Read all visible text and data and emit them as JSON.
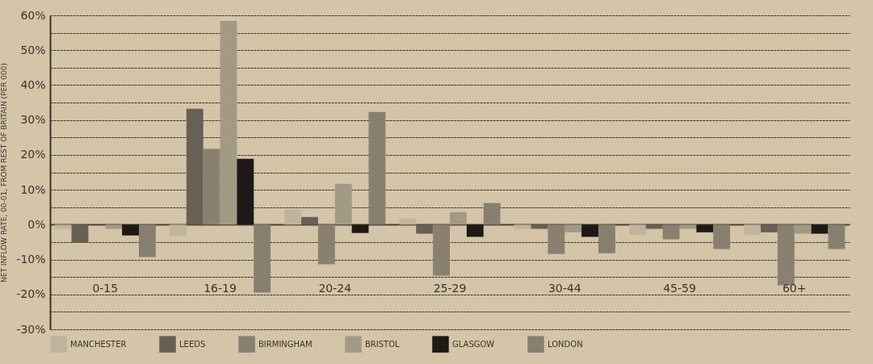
{
  "chart_data": {
    "type": "bar",
    "ylabel": "NET INFLOW RATE, 00-01, FROM REST OF BRITAIN (PER 000)",
    "categories": [
      "0-15",
      "16-19",
      "20-24",
      "25-29",
      "30-44",
      "45-59",
      "60+"
    ],
    "series": [
      {
        "name": "MANCHESTER",
        "color": "#c0b49c",
        "values": [
          -1.2,
          -3.3,
          4.3,
          1.8,
          -1.2,
          -2.9,
          -2.9
        ]
      },
      {
        "name": "LEEDS",
        "color": "#686054",
        "values": [
          -5.2,
          33.2,
          2.2,
          -2.6,
          -1.2,
          -1.2,
          -2.2
        ]
      },
      {
        "name": "BIRMINGHAM",
        "color": "#8a8070",
        "values": [
          null,
          21.7,
          -11.4,
          -14.6,
          -8.4,
          -4.2,
          -17.4
        ]
      },
      {
        "name": "BRISTOL",
        "color": "#a39a85",
        "values": [
          -1.2,
          58.4,
          11.7,
          3.6,
          -2.2,
          -1.2,
          -2.6
        ]
      },
      {
        "name": "GLASGOW",
        "color": "#1e1917",
        "values": [
          -3.1,
          18.9,
          -2.4,
          -3.5,
          -3.5,
          -2.2,
          -2.6
        ]
      },
      {
        "name": "LONDON",
        "color": "#878070",
        "values": [
          -9.3,
          -19.5,
          32.3,
          6.2,
          -8.2,
          -7.0,
          -7.0
        ]
      }
    ],
    "ylim": [
      -30,
      60
    ],
    "yticks": [
      {
        "value": -30,
        "label": "-30%"
      },
      {
        "value": -25,
        "label": null
      },
      {
        "value": -20,
        "label": "-20%"
      },
      {
        "value": -15,
        "label": null
      },
      {
        "value": -10,
        "label": "-10%"
      },
      {
        "value": -5,
        "label": null
      },
      {
        "value": 0,
        "label": "0%"
      },
      {
        "value": 5,
        "label": null
      },
      {
        "value": 10,
        "label": "10%"
      },
      {
        "value": 15,
        "label": null
      },
      {
        "value": 20,
        "label": "20%"
      },
      {
        "value": 25,
        "label": null
      },
      {
        "value": 30,
        "label": "30%"
      },
      {
        "value": 35,
        "label": null
      },
      {
        "value": 40,
        "label": "40%"
      },
      {
        "value": 45,
        "label": null
      },
      {
        "value": 50,
        "label": "50%"
      },
      {
        "value": 55,
        "label": null
      },
      {
        "value": 60,
        "label": "60%"
      }
    ],
    "grid": "y",
    "legend": "bottom"
  }
}
